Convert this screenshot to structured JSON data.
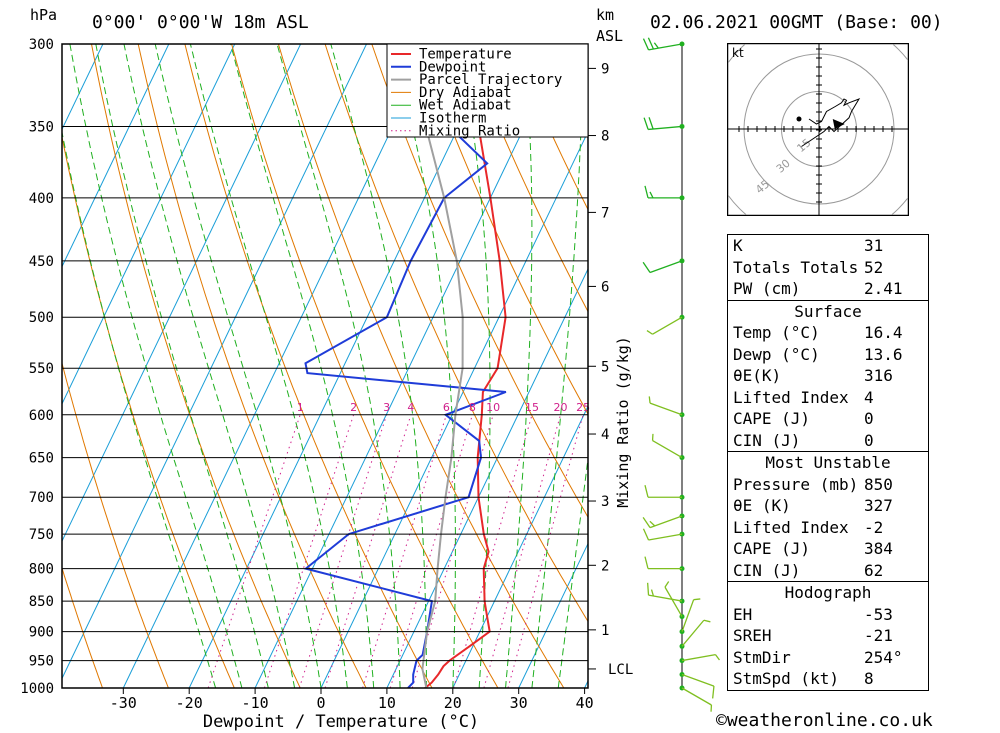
{
  "header": {
    "pressure_unit": "hPa",
    "location": "0°00'  0°00'W  18m  ASL",
    "km_unit": "km",
    "asl_label": "ASL",
    "datetime": "02.06.2021  00GMT  (Base: 00)"
  },
  "footer": {
    "credit": "©weatheronline.co.uk"
  },
  "colors": {
    "temperature": "#e8282a",
    "dewpoint": "#1f3cd8",
    "parcel": "#a0a0a0",
    "dry_adiabat": "#e07800",
    "wet_adiabat": "#20b020",
    "isotherm": "#1a9ed8",
    "mixing_ratio": "#d0208c",
    "wind_barb": "#7fbf20"
  },
  "indices": [
    {
      "label": "K",
      "value": "31"
    },
    {
      "label": "Totals Totals",
      "value": "52"
    },
    {
      "label": "PW (cm)",
      "value": "2.41"
    }
  ],
  "surface": {
    "title": "Surface",
    "rows": [
      {
        "label": "Temp (°C)",
        "value": "16.4"
      },
      {
        "label": "Dewp (°C)",
        "value": "13.6"
      },
      {
        "label": "θE(K)",
        "value": "316"
      },
      {
        "label": "Lifted Index",
        "value": "4"
      },
      {
        "label": "CAPE (J)",
        "value": "0"
      },
      {
        "label": "CIN (J)",
        "value": "0"
      }
    ]
  },
  "most_unstable": {
    "title": "Most Unstable",
    "rows": [
      {
        "label": "Pressure (mb)",
        "value": "850"
      },
      {
        "label": "θE (K)",
        "value": "327"
      },
      {
        "label": "Lifted Index",
        "value": "-2"
      },
      {
        "label": "CAPE (J)",
        "value": "384"
      },
      {
        "label": "CIN (J)",
        "value": "62"
      }
    ]
  },
  "hodograph_table": {
    "title": "Hodograph",
    "rows": [
      {
        "label": "EH",
        "value": "-53"
      },
      {
        "label": "SREH",
        "value": "-21"
      },
      {
        "label": "StmDir",
        "value": "254°"
      },
      {
        "label": "StmSpd (kt)",
        "value": "8"
      }
    ]
  },
  "hodograph": {
    "unit_label": "kt",
    "ring_labels": [
      "15",
      "30",
      "45"
    ]
  },
  "chart_data": {
    "type": "line",
    "title": "",
    "xlabel": "Dewpoint / Temperature (°C)",
    "ylabel": "",
    "right_axis_label": "Mixing Ratio (g/kg)",
    "xlim": [
      -40,
      40
    ],
    "ylim": [
      1000,
      300
    ],
    "x_ticks": [
      -30,
      -20,
      -10,
      0,
      10,
      20,
      30,
      40
    ],
    "pressure_levels": [
      300,
      350,
      400,
      450,
      500,
      550,
      600,
      650,
      700,
      750,
      800,
      850,
      900,
      950,
      1000
    ],
    "km_ticks": [
      {
        "label": "9",
        "p": 314
      },
      {
        "label": "8",
        "p": 356
      },
      {
        "label": "7",
        "p": 411
      },
      {
        "label": "6",
        "p": 472
      },
      {
        "label": "5",
        "p": 548
      },
      {
        "label": "4",
        "p": 622
      },
      {
        "label": "3",
        "p": 705
      },
      {
        "label": "2",
        "p": 795
      },
      {
        "label": "1",
        "p": 897
      }
    ],
    "lcl": {
      "label": "LCL",
      "p": 965
    },
    "mixing_ratio_labels": [
      "1",
      "2",
      "3",
      "4",
      "6",
      "8",
      "10",
      "15",
      "20",
      "25"
    ],
    "legend": [
      "Temperature",
      "Dewpoint",
      "Parcel Trajectory",
      "Dry Adiabat",
      "Wet Adiabat",
      "Isotherm",
      "Mixing Ratio"
    ],
    "legend_position": "top-right",
    "series": [
      {
        "name": "Temperature",
        "points": [
          [
            1000,
            15.8
          ],
          [
            990,
            16.4
          ],
          [
            975,
            16.8
          ],
          [
            960,
            17.0
          ],
          [
            950,
            17.5
          ],
          [
            925,
            19.5
          ],
          [
            900,
            21.5
          ],
          [
            875,
            20.0
          ],
          [
            850,
            18.5
          ],
          [
            800,
            16.0
          ],
          [
            775,
            15.5
          ],
          [
            750,
            13.5
          ],
          [
            700,
            10.0
          ],
          [
            650,
            7.0
          ],
          [
            600,
            4.5
          ],
          [
            575,
            3.0
          ],
          [
            550,
            3.5
          ],
          [
            500,
            1.0
          ],
          [
            450,
            -4.0
          ],
          [
            400,
            -10.0
          ],
          [
            350,
            -17.0
          ],
          [
            330,
            -21.5
          ],
          [
            300,
            -28.0
          ]
        ]
      },
      {
        "name": "Dewpoint",
        "points": [
          [
            1000,
            13.2
          ],
          [
            990,
            13.6
          ],
          [
            975,
            13.0
          ],
          [
            950,
            12.5
          ],
          [
            940,
            13.0
          ],
          [
            900,
            12.0
          ],
          [
            850,
            10.5
          ],
          [
            800,
            -11.0
          ],
          [
            750,
            -7.0
          ],
          [
            700,
            8.5
          ],
          [
            650,
            7.5
          ],
          [
            630,
            6.0
          ],
          [
            600,
            -1.0
          ],
          [
            575,
            6.5
          ],
          [
            555,
            -25.0
          ],
          [
            545,
            -26.0
          ],
          [
            500,
            -17.0
          ],
          [
            450,
            -17.5
          ],
          [
            400,
            -17.0
          ],
          [
            375,
            -13.0
          ],
          [
            350,
            -21.5
          ],
          [
            320,
            -12.0
          ],
          [
            310,
            -9.0
          ],
          [
            300,
            -9.5
          ]
        ]
      },
      {
        "name": "Parcel Trajectory",
        "points": [
          [
            1000,
            16.0
          ],
          [
            965,
            14.0
          ],
          [
            900,
            12.0
          ],
          [
            850,
            11.0
          ],
          [
            800,
            9.0
          ],
          [
            750,
            7.0
          ],
          [
            700,
            5.0
          ],
          [
            650,
            3.0
          ],
          [
            600,
            0.5
          ],
          [
            550,
            -1.8
          ],
          [
            500,
            -5.5
          ],
          [
            450,
            -10.5
          ],
          [
            400,
            -17.0
          ],
          [
            350,
            -25.0
          ],
          [
            300,
            -34.0
          ]
        ]
      }
    ],
    "wind_barbs_kt": [
      {
        "p": 300,
        "dir": 260,
        "speed": 25
      },
      {
        "p": 350,
        "dir": 265,
        "speed": 20
      },
      {
        "p": 400,
        "dir": 270,
        "speed": 15
      },
      {
        "p": 450,
        "dir": 250,
        "speed": 10
      },
      {
        "p": 500,
        "dir": 240,
        "speed": 5
      },
      {
        "p": 600,
        "dir": 290,
        "speed": 5
      },
      {
        "p": 650,
        "dir": 300,
        "speed": 5
      },
      {
        "p": 700,
        "dir": 270,
        "speed": 10
      },
      {
        "p": 725,
        "dir": 250,
        "speed": 15
      },
      {
        "p": 750,
        "dir": 260,
        "speed": 10
      },
      {
        "p": 800,
        "dir": 270,
        "speed": 10
      },
      {
        "p": 850,
        "dir": 280,
        "speed": 15
      },
      {
        "p": 875,
        "dir": 330,
        "speed": 5
      },
      {
        "p": 900,
        "dir": 20,
        "speed": 5
      },
      {
        "p": 925,
        "dir": 40,
        "speed": 5
      },
      {
        "p": 950,
        "dir": 80,
        "speed": 5
      },
      {
        "p": 975,
        "dir": 110,
        "speed": 10
      },
      {
        "p": 1000,
        "dir": 120,
        "speed": 5
      }
    ],
    "hodograph_points_kt": [
      [
        -4.0,
        4.0
      ],
      [
        -1.0,
        2.0
      ],
      [
        1.0,
        3.0
      ],
      [
        3.0,
        7.0
      ],
      [
        6.5,
        9.0
      ],
      [
        9.0,
        10.5
      ],
      [
        10.0,
        12.0
      ],
      [
        11.0,
        11.5
      ],
      [
        10.0,
        9.5
      ],
      [
        12.0,
        10.5
      ],
      [
        16.0,
        12.0
      ],
      [
        13.0,
        7.0
      ],
      [
        12.0,
        4.5
      ],
      [
        6.0,
        -1.0
      ],
      [
        4.0,
        1.0
      ],
      [
        2.0,
        -1.0
      ],
      [
        -7.0,
        -7.0
      ]
    ],
    "storm_motion_kt": [
      7.5,
      2.0
    ]
  }
}
